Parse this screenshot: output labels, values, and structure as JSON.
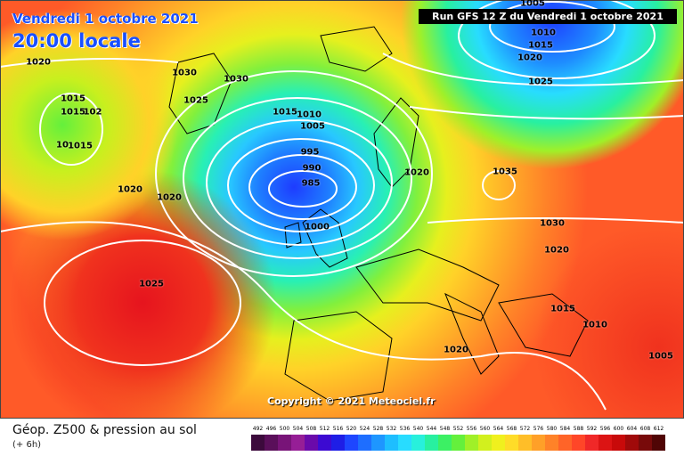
{
  "header": {
    "date": "Vendredi 1 octobre 2021",
    "time": "20:00 locale",
    "run_info": "Run GFS 12 Z du Vendredi 1 octobre 2021"
  },
  "footer": {
    "title": "Géop. Z500 & pression au sol",
    "subtitle": "(+ 6h)",
    "copyright": "Copyright © 2021 Meteociel.fr"
  },
  "color_scale": {
    "labels": [
      "492",
      "496",
      "500",
      "504",
      "508",
      "512",
      "516",
      "520",
      "524",
      "528",
      "532",
      "536",
      "540",
      "544",
      "548",
      "552",
      "556",
      "560",
      "564",
      "568",
      "572",
      "576",
      "580",
      "584",
      "588",
      "592",
      "596",
      "600",
      "604",
      "608",
      "612"
    ],
    "colors": [
      "#3c0a3c",
      "#5a0f5a",
      "#781478",
      "#961e96",
      "#6a0aaa",
      "#3c0ad2",
      "#1e1ee6",
      "#1e46ff",
      "#1e6eff",
      "#1e96ff",
      "#1ebeff",
      "#28dcff",
      "#28f0dc",
      "#28f0a0",
      "#3cf064",
      "#64f03c",
      "#a0f028",
      "#d2f01e",
      "#f0f01e",
      "#ffdc28",
      "#ffbe28",
      "#ffa028",
      "#ff8228",
      "#ff6428",
      "#ff4628",
      "#f02828",
      "#dc1414",
      "#c80a0a",
      "#a00a0a",
      "#780a0a",
      "#500505"
    ]
  },
  "isobar_labels": [
    "1005",
    "1010",
    "1015",
    "1020",
    "1025",
    "1020",
    "1015",
    "1015",
    "102",
    "1015",
    "10",
    "1030",
    "1030",
    "1025",
    "1020",
    "1020",
    "1015",
    "1010",
    "1005",
    "995",
    "990",
    "985",
    "1000",
    "1020",
    "1035",
    "1030",
    "1020",
    "1025",
    "1015",
    "1010",
    "1020",
    "1005"
  ]
}
